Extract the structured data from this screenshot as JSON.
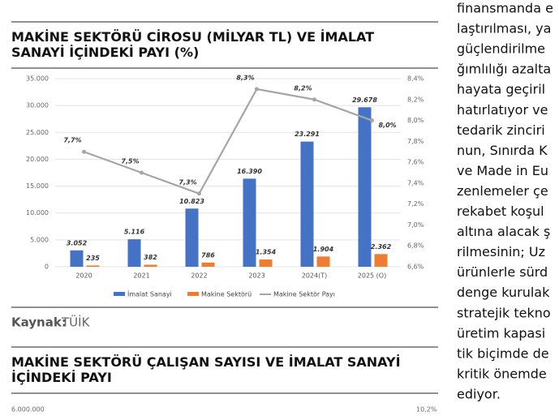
{
  "chart_data": {
    "type": "bar",
    "title": "MAKİNE SEKTÖRÜ CİROSU (MİLYAR TL) VE İMALAT SANAYİ İÇİNDEKİ PAYI (%)",
    "categories": [
      "2020",
      "2021",
      "2022",
      "2023",
      "2024(T)",
      "2025 (O)"
    ],
    "series": [
      {
        "name": "İmalat Sanayi",
        "color": "#4472c4",
        "values": [
          3052,
          5116,
          10823,
          16390,
          23291,
          29678
        ],
        "value_labels": [
          "3.052",
          "5.116",
          "10.823",
          "16.390",
          "23.291",
          "29.678"
        ]
      },
      {
        "name": "Makine Sektörü",
        "color": "#ed7d31",
        "values": [
          235,
          382,
          786,
          1354,
          1904,
          2362
        ],
        "value_labels": [
          "235",
          "382",
          "786",
          "1.354",
          "1.904",
          "2.362"
        ]
      },
      {
        "name": "Makine Sektör Payı",
        "color": "#a5a5a5",
        "type": "line",
        "axis": "y2",
        "values": [
          7.7,
          7.5,
          7.3,
          8.3,
          8.2,
          8.0
        ],
        "value_labels": [
          "7,7%",
          "7,5%",
          "7,3%",
          "8,3%",
          "8,2%",
          "8,0%"
        ]
      }
    ],
    "ylim": [
      0,
      35000
    ],
    "yticks": [
      0,
      {
        "value": 5000,
        "label": "5.000"
      },
      {
        "value": 10000,
        "label": "10.000"
      },
      {
        "value": 15000,
        "label": "15.000"
      },
      {
        "value": 20000,
        "label": "20.000"
      },
      {
        "value": 25000,
        "label": "25.000"
      },
      {
        "value": 30000,
        "label": "30.000"
      },
      {
        "value": 35000,
        "label": "35.000"
      }
    ],
    "y2lim": [
      6.6,
      8.4
    ],
    "y2ticks": [
      {
        "value": 6.6,
        "label": "6,6%"
      },
      {
        "value": 6.8,
        "label": "6,8%"
      },
      {
        "value": 7.0,
        "label": "7,0%"
      },
      {
        "value": 7.2,
        "label": "7,2%"
      },
      {
        "value": 7.4,
        "label": "7,4%"
      },
      {
        "value": 7.6,
        "label": "7,6%"
      },
      {
        "value": 7.8,
        "label": "7,8%"
      },
      {
        "value": 8.0,
        "label": "8,0%"
      },
      {
        "value": 8.2,
        "label": "8,2%"
      },
      {
        "value": 8.4,
        "label": "8,4%"
      }
    ],
    "grid": true
  },
  "document": {
    "source_label": "Kaynak:",
    "source_value": "TÜİK",
    "second_title": "MAKİNE SEKTÖRÜ ÇALIŞAN SAYISI VE İMALAT SANAYİ İÇİNDEKİ PAYI",
    "second_chart_top_left": "6.000.000",
    "second_chart_top_right": "10,2%",
    "column_lines": [
      "finansmanda e",
      "laştırılması, ya",
      "güçlendirilme",
      "ğımlılığı azalta",
      "hayata geçiril",
      "hatırlatıyor ve",
      "tedarik zinciri",
      "nun, Sınırda K",
      "ve Made in Eu",
      "zenlemeler çe",
      "rekabet koşul",
      "altına alacak ş",
      "rilmesinin; Uz",
      "ürünlerle sürd",
      "denge kurulak",
      "stratejik tekno",
      "üretim kapasi",
      "tik biçimde de",
      "kritik önemde",
      "ediyor."
    ]
  }
}
